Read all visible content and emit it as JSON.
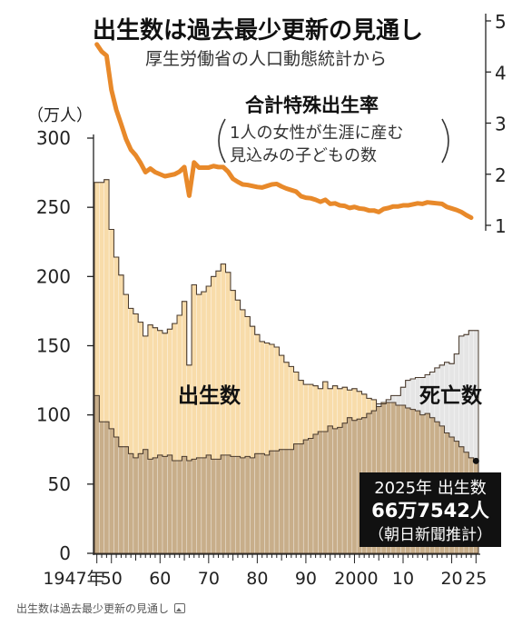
{
  "chart_data": {
    "type": "area",
    "title": "出生数は過去最少更新の見通し",
    "subtitle": "厚生労働省の人口動態統計から",
    "left_unit": "（万人）",
    "left_ticks": [
      0,
      50,
      100,
      150,
      200,
      250,
      300
    ],
    "right_ticks": [
      1,
      2,
      3,
      4,
      5
    ],
    "x_ticks": [
      {
        "year": 1947,
        "label": "1947年"
      },
      {
        "year": 1950,
        "label": "50"
      },
      {
        "year": 1960,
        "label": "60"
      },
      {
        "year": 1970,
        "label": "70"
      },
      {
        "year": 1980,
        "label": "80"
      },
      {
        "year": 1990,
        "label": "90"
      },
      {
        "year": 2000,
        "label": "2000"
      },
      {
        "year": 2010,
        "label": "10"
      },
      {
        "year": 2020,
        "label": "20"
      },
      {
        "year": 2025,
        "label": "25"
      }
    ],
    "ylim_left": [
      0,
      300
    ],
    "ylim_right": [
      1,
      5
    ],
    "xlim": [
      1947,
      2025
    ],
    "years": [
      1947,
      1948,
      1949,
      1950,
      1951,
      1952,
      1953,
      1954,
      1955,
      1956,
      1957,
      1958,
      1959,
      1960,
      1961,
      1962,
      1963,
      1964,
      1965,
      1966,
      1967,
      1968,
      1969,
      1970,
      1971,
      1972,
      1973,
      1974,
      1975,
      1976,
      1977,
      1978,
      1979,
      1980,
      1981,
      1982,
      1983,
      1984,
      1985,
      1986,
      1987,
      1988,
      1989,
      1990,
      1991,
      1992,
      1993,
      1994,
      1995,
      1996,
      1997,
      1998,
      1999,
      2000,
      2001,
      2002,
      2003,
      2004,
      2005,
      2006,
      2007,
      2008,
      2009,
      2010,
      2011,
      2012,
      2013,
      2014,
      2015,
      2016,
      2017,
      2018,
      2019,
      2020,
      2021,
      2022,
      2023,
      2024,
      2025
    ],
    "series": [
      {
        "name": "出生数",
        "label_color": "#000000",
        "values": [
          268,
          268,
          270,
          234,
          214,
          201,
          187,
          177,
          173,
          167,
          157,
          165,
          163,
          161,
          159,
          162,
          166,
          172,
          182,
          136,
          194,
          187,
          189,
          193,
          200,
          204,
          209,
          203,
          190,
          183,
          176,
          171,
          164,
          158,
          153,
          152,
          151,
          149,
          143,
          138,
          135,
          131,
          125,
          122,
          122,
          121,
          119,
          124,
          119,
          121,
          119,
          120,
          118,
          119,
          117,
          115,
          112,
          111,
          106,
          109,
          109,
          109,
          107,
          107,
          105,
          104,
          103,
          100,
          101,
          98,
          95,
          92,
          87,
          84,
          81,
          77,
          73,
          69,
          66.75
        ],
        "color": "#f8dcaa"
      },
      {
        "name": "死亡数",
        "label_color": "#000000",
        "values": [
          114,
          95,
          95,
          90,
          84,
          77,
          77,
          72,
          69,
          72,
          75,
          68,
          69,
          71,
          70,
          71,
          67,
          67,
          70,
          67,
          68,
          69,
          69,
          71,
          68,
          68,
          71,
          71,
          70,
          70,
          69,
          70,
          69,
          72,
          72,
          71,
          74,
          74,
          75,
          75,
          75,
          79,
          79,
          82,
          83,
          86,
          88,
          88,
          92,
          90,
          91,
          94,
          98,
          96,
          97,
          98,
          101,
          103,
          108,
          108,
          111,
          114,
          114,
          120,
          125,
          126,
          127,
          127,
          129,
          131,
          134,
          136,
          138,
          137,
          144,
          157,
          158,
          161,
          161
        ],
        "color": "#d0d0d0"
      },
      {
        "name": "合計特殊出生率",
        "label": "合計特殊出生率",
        "note": "（1人の女性が生涯に産む見込みの子どもの数）",
        "note_lines": [
          "1人の女性が生涯に産む",
          "見込みの子どもの数"
        ],
        "values": [
          4.54,
          4.4,
          4.32,
          3.65,
          3.26,
          2.98,
          2.69,
          2.48,
          2.37,
          2.22,
          2.04,
          2.11,
          2.04,
          2.0,
          1.96,
          1.98,
          2.0,
          2.05,
          2.14,
          1.58,
          2.23,
          2.13,
          2.13,
          2.13,
          2.16,
          2.14,
          2.14,
          2.05,
          1.91,
          1.85,
          1.8,
          1.79,
          1.77,
          1.75,
          1.74,
          1.77,
          1.8,
          1.81,
          1.76,
          1.72,
          1.69,
          1.66,
          1.57,
          1.54,
          1.53,
          1.5,
          1.46,
          1.5,
          1.42,
          1.43,
          1.39,
          1.38,
          1.34,
          1.36,
          1.33,
          1.32,
          1.29,
          1.29,
          1.26,
          1.32,
          1.34,
          1.37,
          1.37,
          1.39,
          1.39,
          1.41,
          1.43,
          1.42,
          1.45,
          1.44,
          1.43,
          1.42,
          1.36,
          1.33,
          1.3,
          1.26,
          1.2,
          1.15,
          null
        ],
        "color": "#e8892a"
      }
    ],
    "annotation": {
      "line1": "2025年 出生数",
      "line2": "66万7542人",
      "line3": "（朝日新聞推計）",
      "year": 2025,
      "value": 66.75
    },
    "grid": false,
    "legend": "inline labels"
  },
  "caption": {
    "text": "出生数は過去最少更新の見通し",
    "icon": "image-icon"
  }
}
